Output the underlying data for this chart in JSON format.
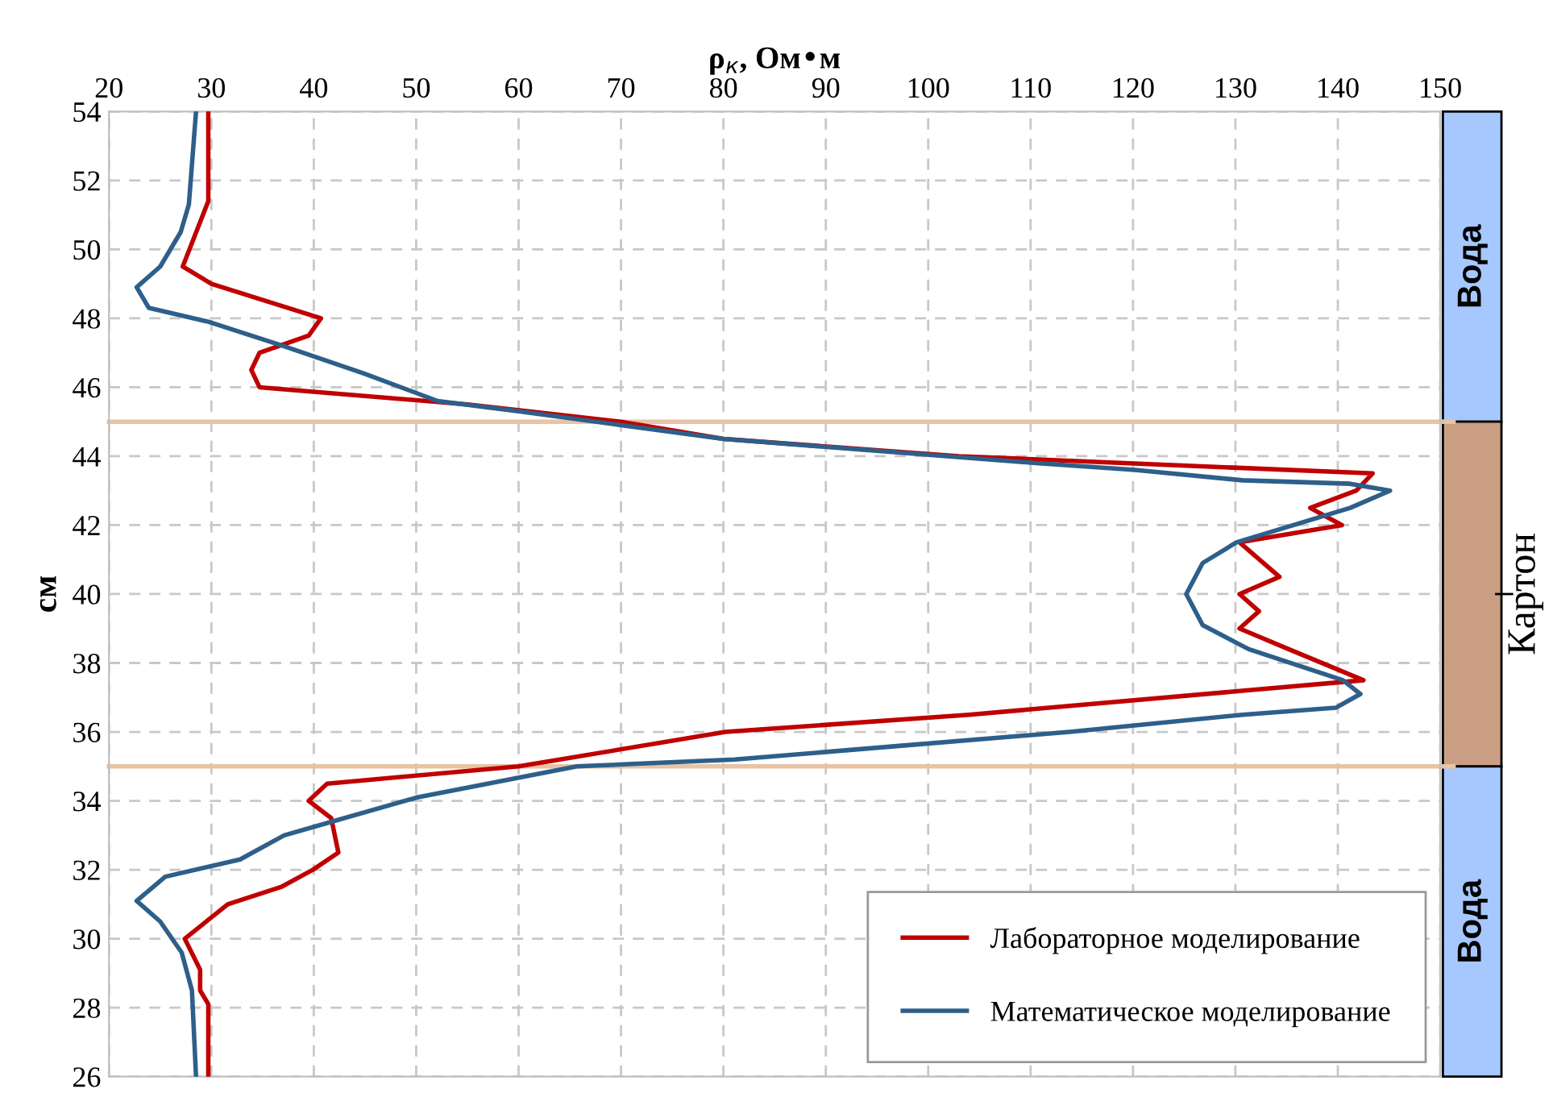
{
  "chart_data": {
    "type": "line",
    "xlabel": "ρ$_{к}$, Ом•м",
    "ylabel": "см",
    "xlim": [
      20,
      150
    ],
    "xticks": [
      20,
      30,
      40,
      50,
      60,
      70,
      80,
      90,
      100,
      110,
      120,
      130,
      140,
      150
    ],
    "ylim": [
      26,
      54
    ],
    "yticks": [
      26,
      28,
      30,
      32,
      34,
      36,
      38,
      40,
      42,
      44,
      46,
      48,
      50,
      52,
      54
    ],
    "grid": true,
    "legend": "bottom right",
    "line_style": "solid",
    "marker": "none",
    "series": [
      {
        "name": "Лабораторное моделирование",
        "color": "#c00000",
        "x": [
          29.7,
          29.7,
          27.2,
          30.0,
          40.7,
          39.5,
          34.7,
          33.9,
          34.7,
          55,
          70,
          80,
          103,
          143.4,
          141.8,
          137.3,
          140.4,
          130.4,
          134.3,
          130.4,
          132.3,
          130.4,
          135.2,
          142.5,
          104,
          80.2,
          60,
          41.3,
          39.5,
          41.7,
          42.4,
          39.9,
          36.8,
          31.6,
          27.4,
          28.9,
          28.9,
          29.7,
          29.7
        ],
        "values": [
          54,
          51.4,
          49.5,
          49.0,
          48.0,
          47.5,
          47.0,
          46.5,
          46.0,
          45.5,
          45.0,
          44.5,
          44.0,
          43.5,
          43.0,
          42.5,
          42.0,
          41.5,
          40.5,
          40.0,
          39.5,
          39.0,
          38.4,
          37.5,
          36.5,
          36.0,
          35.0,
          34.5,
          34.0,
          33.5,
          32.5,
          32.0,
          31.5,
          31.0,
          30.0,
          29.1,
          28.5,
          28.1,
          26
        ]
      },
      {
        "name": "Математическое моделирование",
        "color": "#2e5f8a",
        "x": [
          28.5,
          27.8,
          27.0,
          25.0,
          22.7,
          23.9,
          29.7,
          37.0,
          44.9,
          52.1,
          60,
          70,
          80,
          110.5,
          120.2,
          130.7,
          141.2,
          145.1,
          141.2,
          130.1,
          126.8,
          125.2,
          126.8,
          131.3,
          140.5,
          142.2,
          139.8,
          130.7,
          113.8,
          97.4,
          81.1,
          65.7,
          50.1,
          41.8,
          37.1,
          32.8,
          25.5,
          22.7,
          25.0,
          27.1,
          28.1,
          28.5
        ],
        "values": [
          54,
          51.3,
          50.5,
          49.5,
          48.9,
          48.3,
          47.9,
          47.2,
          46.4,
          45.6,
          45.3,
          44.9,
          44.5,
          43.8,
          43.6,
          43.3,
          43.2,
          43.0,
          42.5,
          41.5,
          40.9,
          40.0,
          39.1,
          38.4,
          37.5,
          37.1,
          36.7,
          36.5,
          36.0,
          35.6,
          35.2,
          35.0,
          34.1,
          33.4,
          33.0,
          32.3,
          31.8,
          31.1,
          30.5,
          29.6,
          28.5,
          26
        ]
      }
    ],
    "ref_lines": [
      {
        "axis": "y",
        "value": 45,
        "color": "#e8c3a4"
      },
      {
        "axis": "y",
        "value": 35,
        "color": "#e8c3a4"
      }
    ],
    "annotations": [
      "Вода",
      "Картон",
      "Вода"
    ]
  }
}
